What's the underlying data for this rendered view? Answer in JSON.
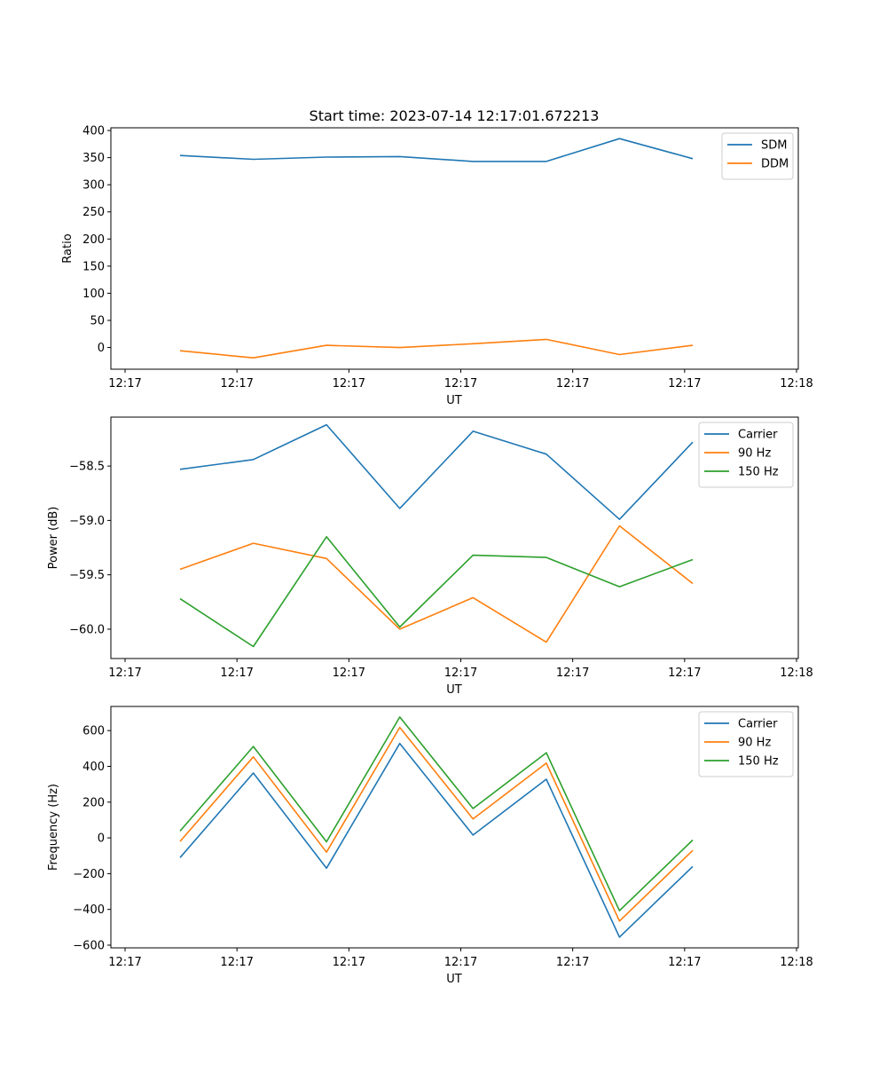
{
  "figure": {
    "title": "Start time: 2023-07-14 12:17:01.672213",
    "background": "#ffffff",
    "colors": {
      "blue": "#1f77b4",
      "orange": "#ff7f0e",
      "green": "#2ca02c"
    }
  },
  "chart_data": [
    {
      "type": "line",
      "title": "Start time: 2023-07-14 12:17:01.672213",
      "xlabel": "UT",
      "ylabel": "Ratio",
      "x": [
        1,
        2,
        3,
        4,
        5,
        6,
        7,
        8
      ],
      "xlim": [
        0.8,
        9.2
      ],
      "xticks": [
        1,
        2.5,
        4,
        5.5,
        7,
        8.5,
        10
      ],
      "xticklabels": [
        "12:17",
        "12:17",
        "12:17",
        "12:17",
        "12:17",
        "12:17",
        "12:18"
      ],
      "xtick_positions": [
        0,
        1.5,
        3,
        4.5,
        6,
        7.5,
        9
      ],
      "ylim": [
        -40,
        405
      ],
      "yticks": [
        0,
        50,
        100,
        150,
        200,
        250,
        300,
        350,
        400
      ],
      "yticklabels": [
        "0",
        "50",
        "100",
        "150",
        "200",
        "250",
        "300",
        "350",
        "400"
      ],
      "legend_position": "top-right",
      "grid": false,
      "series": [
        {
          "name": "SDM",
          "color": "#1f77b4",
          "values": [
            354,
            347,
            351,
            352,
            343,
            343,
            385,
            348
          ]
        },
        {
          "name": "DDM",
          "color": "#ff7f0e",
          "values": [
            -6,
            -19,
            4,
            0,
            7,
            15,
            -13,
            4
          ]
        }
      ]
    },
    {
      "type": "line",
      "title": "",
      "xlabel": "UT",
      "ylabel": "Power (dB)",
      "x": [
        1,
        2,
        3,
        4,
        5,
        6,
        7,
        8
      ],
      "xlim": [
        0.8,
        9.2
      ],
      "xtick_positions": [
        0,
        1.5,
        3,
        4.5,
        6,
        7.5,
        9
      ],
      "xticklabels": [
        "12:17",
        "12:17",
        "12:17",
        "12:17",
        "12:17",
        "12:17",
        "12:18"
      ],
      "ylim": [
        -60.27,
        -58.05
      ],
      "yticks": [
        -60.0,
        -59.5,
        -59.0,
        -58.5
      ],
      "yticklabels": [
        "−60.0",
        "−59.5",
        "−59.0",
        "−58.5"
      ],
      "legend_position": "top-right",
      "grid": false,
      "series": [
        {
          "name": "Carrier",
          "color": "#1f77b4",
          "values": [
            -58.53,
            -58.44,
            -58.12,
            -58.89,
            -58.18,
            -58.39,
            -58.99,
            -58.28
          ]
        },
        {
          "name": "90 Hz",
          "color": "#ff7f0e",
          "values": [
            -59.45,
            -59.21,
            -59.35,
            -60.0,
            -59.71,
            -60.12,
            -59.05,
            -59.58
          ]
        },
        {
          "name": "150 Hz",
          "color": "#2ca02c",
          "values": [
            -59.72,
            -60.16,
            -59.15,
            -59.98,
            -59.32,
            -59.34,
            -59.61,
            -59.36
          ]
        }
      ]
    },
    {
      "type": "line",
      "title": "",
      "xlabel": "UT",
      "ylabel": "Frequency (Hz)",
      "x": [
        1,
        2,
        3,
        4,
        5,
        6,
        7,
        8
      ],
      "xlim": [
        0.8,
        9.2
      ],
      "xtick_positions": [
        0,
        1.5,
        3,
        4.5,
        6,
        7.5,
        9
      ],
      "xticklabels": [
        "12:17",
        "12:17",
        "12:17",
        "12:17",
        "12:17",
        "12:17",
        "12:18"
      ],
      "ylim": [
        -615,
        735
      ],
      "yticks": [
        -600,
        -400,
        -200,
        0,
        200,
        400,
        600
      ],
      "yticklabels": [
        "−600",
        "−400",
        "−200",
        "0",
        "200",
        "400",
        "600"
      ],
      "legend_position": "top-right",
      "grid": false,
      "series": [
        {
          "name": "Carrier",
          "color": "#1f77b4",
          "values": [
            -110,
            363,
            -170,
            528,
            16,
            328,
            -555,
            -160
          ]
        },
        {
          "name": "90 Hz",
          "color": "#ff7f0e",
          "values": [
            -20,
            453,
            -80,
            618,
            106,
            418,
            -465,
            -70
          ]
        },
        {
          "name": "150 Hz",
          "color": "#2ca02c",
          "values": [
            38,
            511,
            -22,
            676,
            164,
            476,
            -407,
            -12
          ]
        }
      ]
    }
  ]
}
